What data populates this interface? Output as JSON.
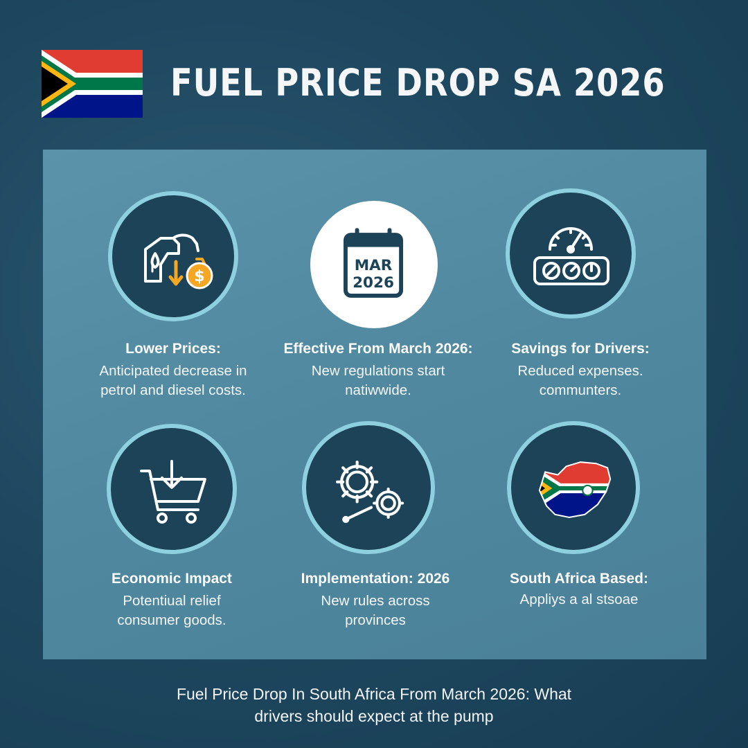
{
  "header": {
    "title": "FUEL PRICE DROP SA 2026",
    "flag_colors": {
      "red": "#e03c31",
      "blue": "#001489",
      "green": "#007749",
      "black": "#000000",
      "gold": "#ffb612",
      "white": "#ffffff"
    }
  },
  "cards": [
    {
      "icon": "fuel-nozzle-money-bag-icon",
      "title": "Lower Prices:",
      "lines": [
        "Anticipated decrease in",
        "petrol and diesel costs."
      ]
    },
    {
      "icon": "calendar-icon",
      "calendar_month": "MAR",
      "calendar_year": "2026",
      "title": "Effective From March 2026:",
      "lines": [
        "New regulations start",
        "natiwwide."
      ]
    },
    {
      "icon": "gauge-dashboard-icon",
      "title": "Savings for Drivers:",
      "lines": [
        "Reduced expenses.",
        "communters."
      ]
    },
    {
      "icon": "shopping-cart-down-icon",
      "title": "Economic Impact",
      "lines": [
        "Potentiual relief",
        "consumer goods."
      ]
    },
    {
      "icon": "gears-icon",
      "title": "Implementation: 2026",
      "lines": [
        "New rules across",
        "provinces"
      ]
    },
    {
      "icon": "south-africa-map-flag-icon",
      "title": "South Africa Based:",
      "lines": [
        "Appliys a al stsoae"
      ]
    }
  ],
  "footer": {
    "caption_line1": "Fuel Price Drop In South Africa From March 2026: What",
    "caption_line2": "drivers should expect at the pump"
  },
  "colors": {
    "background": "#1e4860",
    "panel": "#5289a1",
    "ring": "#8fd0e0",
    "ring_fill": "#1c4358",
    "accent_gold": "#f5a623"
  }
}
